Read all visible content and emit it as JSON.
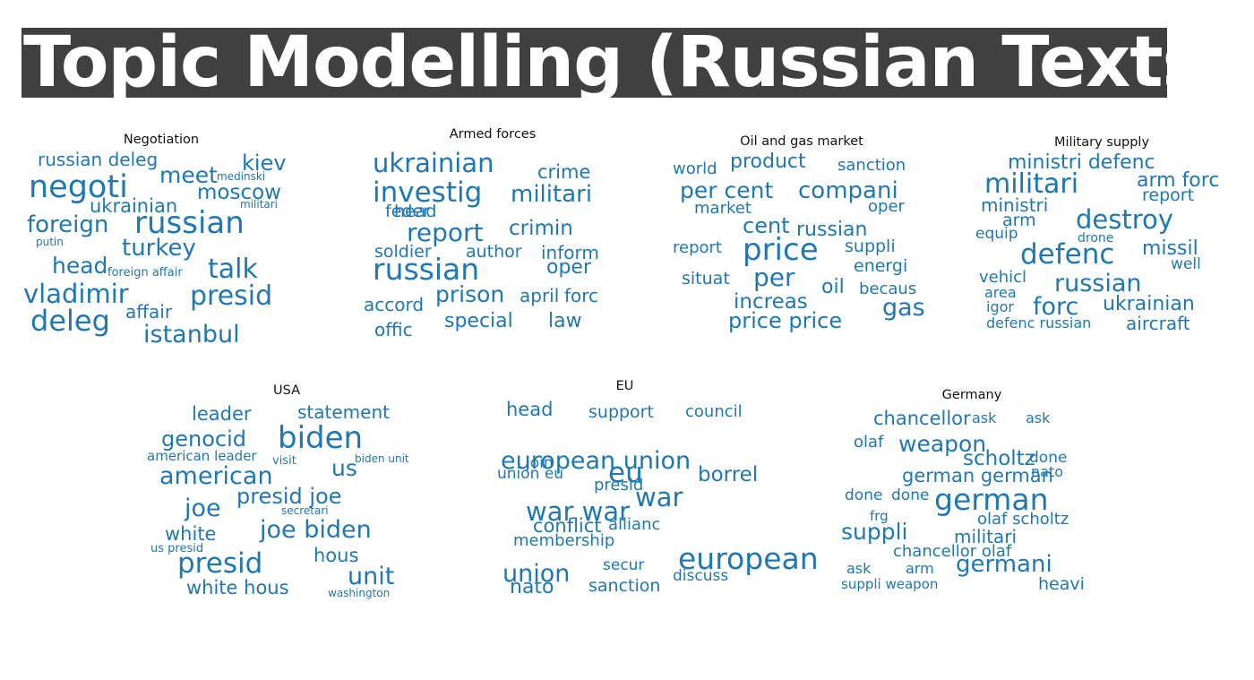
{
  "heading": "Topic Modelling (Russian Texts)",
  "word_color": "#1f77b4",
  "clouds": [
    {
      "title": "Negotiation",
      "words": [
        {
          "text": "russian deleg",
          "weight": 20
        },
        {
          "text": "kiev",
          "weight": 24
        },
        {
          "text": "negoti",
          "weight": 35
        },
        {
          "text": "meet",
          "weight": 25
        },
        {
          "text": "medinski",
          "weight": 12
        },
        {
          "text": "moscow",
          "weight": 23
        },
        {
          "text": "ukrainian",
          "weight": 21
        },
        {
          "text": "militari",
          "weight": 12
        },
        {
          "text": "foreign",
          "weight": 26
        },
        {
          "text": "russian",
          "weight": 34
        },
        {
          "text": "putin",
          "weight": 12
        },
        {
          "text": "turkey",
          "weight": 26
        },
        {
          "text": "head",
          "weight": 25
        },
        {
          "text": "foreign affair",
          "weight": 13
        },
        {
          "text": "talk",
          "weight": 30
        },
        {
          "text": "vladimir",
          "weight": 29
        },
        {
          "text": "presid",
          "weight": 30
        },
        {
          "text": "affair",
          "weight": 20
        },
        {
          "text": "deleg",
          "weight": 32
        },
        {
          "text": "istanbul",
          "weight": 27
        }
      ]
    },
    {
      "title": "Armed forces",
      "words": [
        {
          "text": "ukrainian",
          "weight": 29
        },
        {
          "text": "crime",
          "weight": 21
        },
        {
          "text": "investig",
          "weight": 31
        },
        {
          "text": "militari",
          "weight": 26
        },
        {
          "text": "feder",
          "weight": 19
        },
        {
          "text": "head",
          "weight": 19
        },
        {
          "text": "crimin",
          "weight": 23
        },
        {
          "text": "report",
          "weight": 28
        },
        {
          "text": "soldier",
          "weight": 19
        },
        {
          "text": "author",
          "weight": 19
        },
        {
          "text": "inform",
          "weight": 20
        },
        {
          "text": "russian",
          "weight": 33
        },
        {
          "text": "oper",
          "weight": 22
        },
        {
          "text": "accord",
          "weight": 20
        },
        {
          "text": "prison",
          "weight": 25
        },
        {
          "text": "april",
          "weight": 20
        },
        {
          "text": "forc",
          "weight": 20
        },
        {
          "text": "offic",
          "weight": 20
        },
        {
          "text": "special",
          "weight": 22
        },
        {
          "text": "law",
          "weight": 22
        }
      ]
    },
    {
      "title": "Oil and gas market",
      "words": [
        {
          "text": "world",
          "weight": 18
        },
        {
          "text": "product",
          "weight": 22
        },
        {
          "text": "sanction",
          "weight": 18
        },
        {
          "text": "per cent",
          "weight": 25
        },
        {
          "text": "compani",
          "weight": 26
        },
        {
          "text": "market",
          "weight": 18
        },
        {
          "text": "oper",
          "weight": 18
        },
        {
          "text": "cent",
          "weight": 24
        },
        {
          "text": "russian",
          "weight": 22
        },
        {
          "text": "report",
          "weight": 18
        },
        {
          "text": "price",
          "weight": 34
        },
        {
          "text": "suppli",
          "weight": 19
        },
        {
          "text": "energi",
          "weight": 19
        },
        {
          "text": "situat",
          "weight": 19
        },
        {
          "text": "per",
          "weight": 28
        },
        {
          "text": "oil",
          "weight": 22
        },
        {
          "text": "becaus",
          "weight": 18
        },
        {
          "text": "increas",
          "weight": 23
        },
        {
          "text": "gas",
          "weight": 27
        },
        {
          "text": "price price",
          "weight": 24
        }
      ]
    },
    {
      "title": "Military supply",
      "words": [
        {
          "text": "ministri defenc",
          "weight": 22
        },
        {
          "text": "militari",
          "weight": 30
        },
        {
          "text": "arm forc",
          "weight": 22
        },
        {
          "text": "ministri",
          "weight": 20
        },
        {
          "text": "report",
          "weight": 19
        },
        {
          "text": "arm",
          "weight": 19
        },
        {
          "text": "destroy",
          "weight": 29
        },
        {
          "text": "equip",
          "weight": 17
        },
        {
          "text": "drone",
          "weight": 14
        },
        {
          "text": "defenc",
          "weight": 31
        },
        {
          "text": "missil",
          "weight": 22
        },
        {
          "text": "well",
          "weight": 17
        },
        {
          "text": "vehicl",
          "weight": 18
        },
        {
          "text": "russian",
          "weight": 27
        },
        {
          "text": "area",
          "weight": 16
        },
        {
          "text": "igor",
          "weight": 16
        },
        {
          "text": "forc",
          "weight": 27
        },
        {
          "text": "ukrainian",
          "weight": 22
        },
        {
          "text": "defenc russian",
          "weight": 16
        },
        {
          "text": "aircraft",
          "weight": 20
        }
      ]
    },
    {
      "title": "USA",
      "words": [
        {
          "text": "leader",
          "weight": 21
        },
        {
          "text": "statement",
          "weight": 20
        },
        {
          "text": "genocid",
          "weight": 24
        },
        {
          "text": "biden",
          "weight": 34
        },
        {
          "text": "american leader",
          "weight": 15
        },
        {
          "text": "visit",
          "weight": 13
        },
        {
          "text": "biden unit",
          "weight": 12
        },
        {
          "text": "american",
          "weight": 27
        },
        {
          "text": "us",
          "weight": 25
        },
        {
          "text": "presid joe",
          "weight": 24
        },
        {
          "text": "joe",
          "weight": 27
        },
        {
          "text": "secretari",
          "weight": 12
        },
        {
          "text": "white",
          "weight": 21
        },
        {
          "text": "joe biden",
          "weight": 27
        },
        {
          "text": "us presid",
          "weight": 13
        },
        {
          "text": "presid",
          "weight": 31
        },
        {
          "text": "hous",
          "weight": 21
        },
        {
          "text": "unit",
          "weight": 27
        },
        {
          "text": "white hous",
          "weight": 21
        },
        {
          "text": "washington",
          "weight": 12
        }
      ]
    },
    {
      "title": "EU",
      "words": [
        {
          "text": "head",
          "weight": 21
        },
        {
          "text": "support",
          "weight": 19
        },
        {
          "text": "council",
          "weight": 18
        },
        {
          "text": "european union",
          "weight": 27
        },
        {
          "text": "union eu",
          "weight": 17
        },
        {
          "text": "join",
          "weight": 17
        },
        {
          "text": "eu",
          "weight": 31
        },
        {
          "text": "borrel",
          "weight": 23
        },
        {
          "text": "presid",
          "weight": 18
        },
        {
          "text": "war",
          "weight": 29
        },
        {
          "text": "war war",
          "weight": 29
        },
        {
          "text": "conflict",
          "weight": 21
        },
        {
          "text": "allianc",
          "weight": 18
        },
        {
          "text": "membership",
          "weight": 18
        },
        {
          "text": "european",
          "weight": 33
        },
        {
          "text": "union",
          "weight": 27
        },
        {
          "text": "secur",
          "weight": 17
        },
        {
          "text": "discuss",
          "weight": 17
        },
        {
          "text": "nato",
          "weight": 22
        },
        {
          "text": "sanction",
          "weight": 19
        }
      ]
    },
    {
      "title": "Germany",
      "words": [
        {
          "text": "chancellor",
          "weight": 21
        },
        {
          "text": "ask",
          "weight": 16
        },
        {
          "text": "ask",
          "weight": 16
        },
        {
          "text": "weapon",
          "weight": 25
        },
        {
          "text": "olaf",
          "weight": 18
        },
        {
          "text": "scholtz",
          "weight": 23
        },
        {
          "text": "done",
          "weight": 17
        },
        {
          "text": "german german",
          "weight": 21
        },
        {
          "text": "nato",
          "weight": 16
        },
        {
          "text": "done",
          "weight": 17
        },
        {
          "text": "done",
          "weight": 17
        },
        {
          "text": "german",
          "weight": 33
        },
        {
          "text": "frg",
          "weight": 15
        },
        {
          "text": "olaf scholtz",
          "weight": 18
        },
        {
          "text": "suppli",
          "weight": 25
        },
        {
          "text": "militari",
          "weight": 20
        },
        {
          "text": "chancellor olaf",
          "weight": 18
        },
        {
          "text": "ask",
          "weight": 16
        },
        {
          "text": "arm",
          "weight": 16
        },
        {
          "text": "germani",
          "weight": 26
        },
        {
          "text": "suppli weapon",
          "weight": 15
        },
        {
          "text": "heavi",
          "weight": 19
        }
      ]
    }
  ]
}
